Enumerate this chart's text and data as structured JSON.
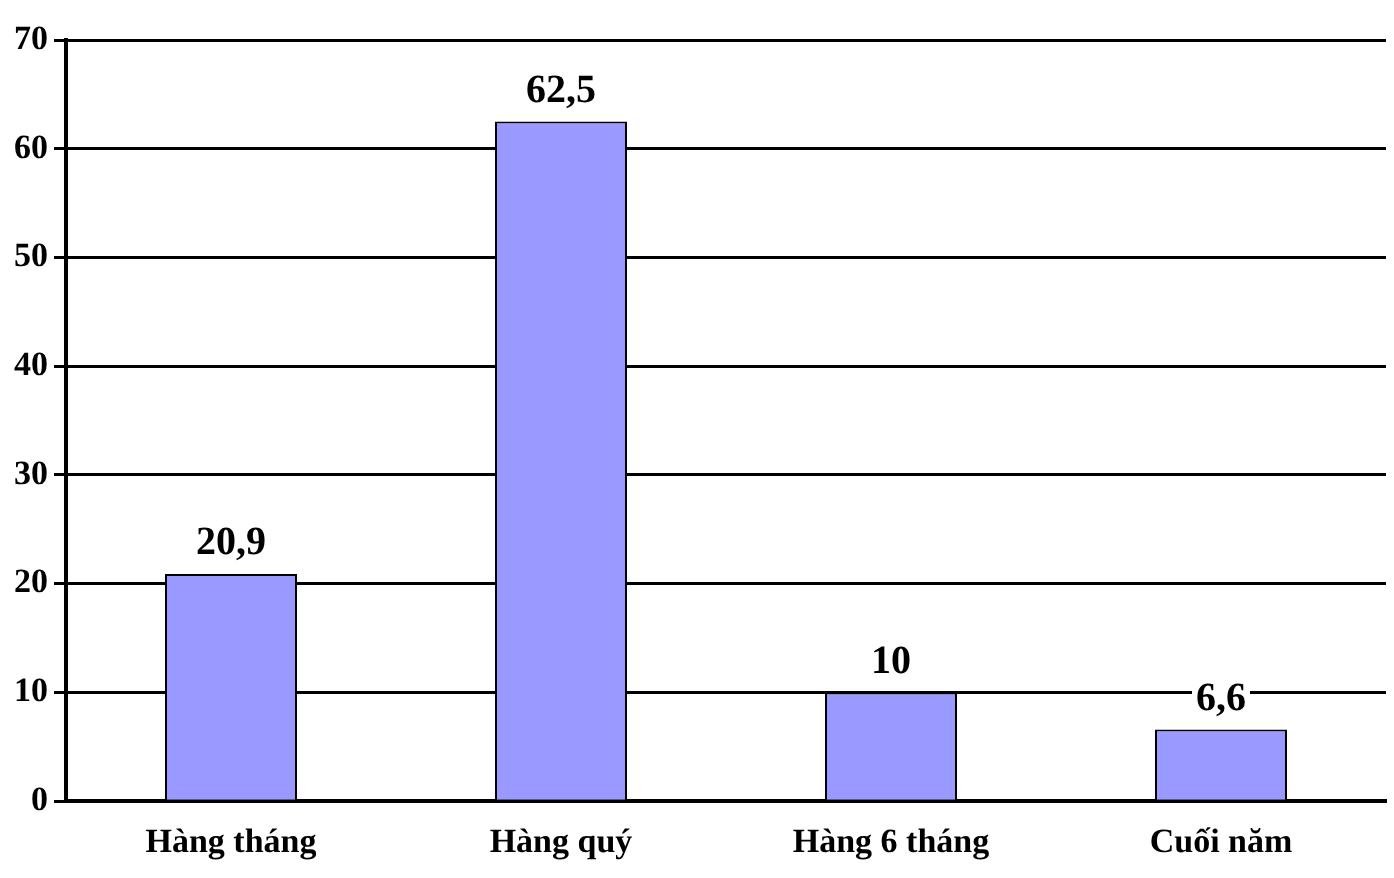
{
  "chart_data": {
    "type": "bar",
    "categories": [
      "Hàng tháng",
      "Hàng quý",
      "Hàng 6 tháng",
      "Cuối năm"
    ],
    "values": [
      20.9,
      62.5,
      10,
      6.6
    ],
    "value_labels": [
      "20,9",
      "62,5",
      "10",
      "6,6"
    ],
    "color": "#9999ff",
    "ylim": [
      0,
      70
    ],
    "yticks": [
      0,
      10,
      20,
      30,
      40,
      50,
      60,
      70
    ],
    "grid": "y",
    "legend": false
  }
}
